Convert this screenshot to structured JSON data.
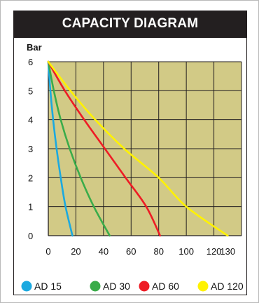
{
  "header": {
    "title": "CAPACITY DIAGRAM"
  },
  "chart_data": {
    "type": "line",
    "title": "CAPACITY DIAGRAM",
    "ylabel": "Bar",
    "xlabel": "",
    "xlim": [
      0,
      140
    ],
    "ylim": [
      0,
      6
    ],
    "x_ticks": [
      0,
      20,
      40,
      60,
      80,
      100,
      120,
      130
    ],
    "y_ticks": [
      0,
      1,
      2,
      3,
      4,
      5,
      6
    ],
    "grid": true,
    "plot_bg": "#d2ca86",
    "legend_position": "bottom",
    "series": [
      {
        "name": "AD 15",
        "color": "#1ba9e0",
        "x": [
          0,
          1.5,
          3.5,
          6,
          9,
          12.5,
          17.5
        ],
        "y": [
          6,
          5,
          4,
          3,
          2,
          1,
          0
        ]
      },
      {
        "name": "AD 30",
        "color": "#3aac4a",
        "x": [
          0,
          4,
          9,
          15.5,
          23.5,
          33,
          44.5
        ],
        "y": [
          6,
          5,
          4,
          3,
          2,
          1,
          0
        ]
      },
      {
        "name": "AD 60",
        "color": "#ee1c25",
        "x": [
          0,
          12,
          26,
          41,
          56,
          71,
          81
        ],
        "y": [
          6,
          5,
          4,
          3,
          2,
          1,
          0
        ]
      },
      {
        "name": "AD 120",
        "color": "#fff200",
        "x": [
          0,
          16,
          34,
          55,
          80,
          100,
          130
        ],
        "y": [
          6,
          5,
          4,
          3,
          2,
          1,
          0
        ]
      }
    ]
  }
}
